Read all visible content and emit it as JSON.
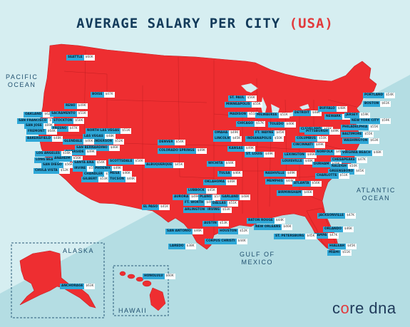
{
  "title": {
    "main": "AVERAGE SALARY PER CITY",
    "highlight": "(USA)"
  },
  "oceans": {
    "pacific": [
      "PACIFIC",
      "OCEAN"
    ],
    "atlantic": [
      "ATLANTIC",
      "OCEAN"
    ],
    "gulf": [
      "GULF OF",
      "MEXICO"
    ]
  },
  "regions": {
    "alaska": "ALASKA",
    "hawaii": "HAWAII"
  },
  "logo": {
    "pre": "c",
    "o": "o",
    "post": "re dna"
  },
  "colors": {
    "land": "#ee2e31",
    "label": "#2fa8d8",
    "sea_light": "#d6eef1",
    "sea_dark": "#b4dde3",
    "title": "#123a5a"
  },
  "cities": [
    {
      "name": "SEATTLE",
      "salary": "$60K"
    },
    {
      "name": "BOISE",
      "salary": "$47K"
    },
    {
      "name": "RENO",
      "salary": "$49K"
    },
    {
      "name": "OAKLAND",
      "salary": "$62K"
    },
    {
      "name": "SACRAMENTO",
      "salary": "$51K"
    },
    {
      "name": "SAN FRANCISCO",
      "salary": "$71K"
    },
    {
      "name": "STOCKTON",
      "salary": "$50K"
    },
    {
      "name": "SAN JOSE",
      "salary": "$69K"
    },
    {
      "name": "FRESNO",
      "salary": "$47K"
    },
    {
      "name": "FREMONT",
      "salary": "$64K"
    },
    {
      "name": "BAKERSFIELD",
      "salary": "$48K"
    },
    {
      "name": "NORTH LAS VEGAS",
      "salary": "$51K"
    },
    {
      "name": "LAS VEGAS",
      "salary": "$48K"
    },
    {
      "name": "HENDERSON",
      "salary": "$52K"
    },
    {
      "name": "GLENDALE",
      "salary": "$46K"
    },
    {
      "name": "SAN BERNARDINO",
      "salary": "$46K"
    },
    {
      "name": "RIVERSIDE",
      "salary": "$49K"
    },
    {
      "name": "LOS ANGELES",
      "salary": "$56K"
    },
    {
      "name": "LONG BEACH",
      "salary": "$54K"
    },
    {
      "name": "ANAHEIM",
      "salary": "$56K"
    },
    {
      "name": "SAN DIEGO",
      "salary": "$56K"
    },
    {
      "name": "CHULA VISTA",
      "salary": "$52K"
    },
    {
      "name": "IRVINE",
      "salary": "$55K"
    },
    {
      "name": "SANTA ANA",
      "salary": "$54K"
    },
    {
      "name": "SCOTTSDALE",
      "salary": "$54K"
    },
    {
      "name": "PHOENIX",
      "salary": "$49K"
    },
    {
      "name": "CHANDLER",
      "salary": "$51K"
    },
    {
      "name": "MESA",
      "salary": "$46K"
    },
    {
      "name": "GILBERT",
      "salary": "$53K"
    },
    {
      "name": "TUCSON",
      "salary": "$44K"
    },
    {
      "name": "DENVER",
      "salary": "$54K"
    },
    {
      "name": "COLORADO SPRINGS",
      "salary": "$49K"
    },
    {
      "name": "ALBUQUERQUE",
      "salary": "$45K"
    },
    {
      "name": "EL PASO",
      "salary": "$41K"
    },
    {
      "name": "ST. PAUL",
      "salary": "$56K"
    },
    {
      "name": "MINNEAPOLIS",
      "salary": "$55K"
    },
    {
      "name": "MADISON",
      "salary": "$51K"
    },
    {
      "name": "MILWAUKEE",
      "salary": "$51K"
    },
    {
      "name": "CHICAGO",
      "salary": "$57K"
    },
    {
      "name": "DETROIT",
      "salary": "$48K"
    },
    {
      "name": "TOLEDO",
      "salary": "$46K"
    },
    {
      "name": "FT. WAYNE",
      "salary": "$45K"
    },
    {
      "name": "OMAHA",
      "salary": "$49K"
    },
    {
      "name": "LINCOLN",
      "salary": "$45K"
    },
    {
      "name": "INDIANAPOLIS",
      "salary": "$50K"
    },
    {
      "name": "KANSAS",
      "salary": "$49K"
    },
    {
      "name": "ST. LOUIS",
      "salary": "$49K"
    },
    {
      "name": "WICHITA",
      "salary": "$44K"
    },
    {
      "name": "TULSA",
      "salary": "$46K"
    },
    {
      "name": "OKLAHOMA",
      "salary": "$46K"
    },
    {
      "name": "LUBBOCK",
      "salary": "$45K"
    },
    {
      "name": "AURORA",
      "salary": "$49K"
    },
    {
      "name": "PLANO",
      "salary": "$57K"
    },
    {
      "name": "GARLAND",
      "salary": "$48K"
    },
    {
      "name": "FT. WORTH",
      "salary": "$49K"
    },
    {
      "name": "DALLAS",
      "salary": "$51K"
    },
    {
      "name": "ARLINGTON",
      "salary": "$49K"
    },
    {
      "name": "IRVING",
      "salary": "$53K"
    },
    {
      "name": "AUSTIN",
      "salary": "$53K"
    },
    {
      "name": "SAN ANTONIO",
      "salary": "$46K"
    },
    {
      "name": "HOUSTON",
      "salary": "$52K"
    },
    {
      "name": "CORPUS CHRISTI",
      "salary": "$44K"
    },
    {
      "name": "LAREDO",
      "salary": "$38K"
    },
    {
      "name": "NASHVILLE",
      "salary": "$49K"
    },
    {
      "name": "MEMPHIS",
      "salary": "$44K"
    },
    {
      "name": "LEXINGTON",
      "salary": "$46K"
    },
    {
      "name": "LOUISVILLE",
      "salary": "$48K"
    },
    {
      "name": "CINCINNATI",
      "salary": "$49K"
    },
    {
      "name": "COLUMBUS",
      "salary": "$50K"
    },
    {
      "name": "CLEVELAND",
      "salary": "$48K"
    },
    {
      "name": "PITTSBURGH",
      "salary": "$49K"
    },
    {
      "name": "BUFFALO",
      "salary": "$48K"
    },
    {
      "name": "NEWARK",
      "salary": "$56K"
    },
    {
      "name": "JERSEY",
      "salary": "$59K"
    },
    {
      "name": "NEW YORK CITY",
      "salary": "$59K"
    },
    {
      "name": "PHILADELPHIA",
      "salary": "$55K"
    },
    {
      "name": "BALTIMORE",
      "salary": "$55K"
    },
    {
      "name": "WASHINGTON",
      "salary": "$63K"
    },
    {
      "name": "PORTLAND",
      "salary": "$54K"
    },
    {
      "name": "BOSTON",
      "salary": "$61K"
    },
    {
      "name": "NORFOLK",
      "salary": "$46K"
    },
    {
      "name": "VIRGINIA BEACH",
      "salary": "$48K"
    },
    {
      "name": "CHESAPEAKE",
      "salary": "$47K"
    },
    {
      "name": "DURHAM",
      "salary": "$49K"
    },
    {
      "name": "RALEIGH",
      "salary": "$50K"
    },
    {
      "name": "GREENSBORO",
      "salary": "$45K"
    },
    {
      "name": "CHARLOTTE",
      "salary": "$51K"
    },
    {
      "name": "ATLANTA",
      "salary": "$56K"
    },
    {
      "name": "BIRMINGHAM",
      "salary": "$46K"
    },
    {
      "name": "BATON ROUGE",
      "salary": "$44K"
    },
    {
      "name": "NEW ORLEANS",
      "salary": "$46K"
    },
    {
      "name": "JACKSONVILLE",
      "salary": "$47K"
    },
    {
      "name": "ORLANDO",
      "salary": "$46K"
    },
    {
      "name": "TAMPA",
      "salary": "$47K"
    },
    {
      "name": "ST. PETERSBURG",
      "salary": "$45K"
    },
    {
      "name": "HIALEAH",
      "salary": "$45K"
    },
    {
      "name": "MIAMI",
      "salary": "$51K"
    },
    {
      "name": "ANCHORAGE",
      "salary": "$63K"
    },
    {
      "name": "HONOLULU",
      "salary": "$60K"
    }
  ]
}
